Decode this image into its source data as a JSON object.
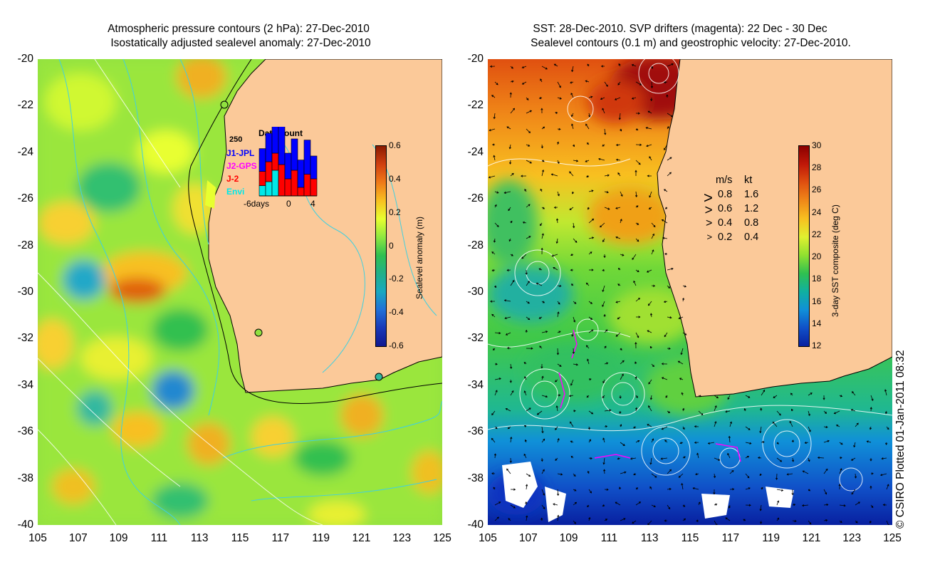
{
  "left_panel": {
    "title_line1": "Atmospheric pressure contours (2 hPa): 27-Dec-2010",
    "title_line2": "Isostatically adjusted sealevel anomaly: 27-Dec-2010",
    "y_ticks": [
      "-20",
      "-22",
      "-24",
      "-26",
      "-28",
      "-30",
      "-32",
      "-34",
      "-36",
      "-38",
      "-40"
    ],
    "x_ticks": [
      "105",
      "107",
      "109",
      "111",
      "113",
      "115",
      "117",
      "119",
      "121",
      "123",
      "125"
    ],
    "colorbar": {
      "label": "Sealevel anomaly (m)",
      "ticks": [
        "0.6",
        "0.4",
        "0.2",
        "0",
        "-0.2",
        "-0.4",
        "-0.6"
      ],
      "colors": [
        "#8b1a00",
        "#d04010",
        "#f07a18",
        "#f8c020",
        "#e8ff30",
        "#90e840",
        "#30c050",
        "#20b088",
        "#18a8c0",
        "#2070d8",
        "#1838b8",
        "#101890"
      ]
    },
    "histogram": {
      "title": "Data count",
      "max_label": "250",
      "x_labels": [
        "-6days",
        "0",
        "4"
      ],
      "legend": [
        {
          "label": "J1-JPL",
          "color": "#0000ff"
        },
        {
          "label": "J2-GPS",
          "color": "#ff00ff"
        },
        {
          "label": "J-2",
          "color": "#ff0000"
        },
        {
          "label": "Envi",
          "color": "#00e8e8"
        }
      ],
      "bars": [
        {
          "j2": 0.25,
          "envi": 0.18,
          "j1": 0.4
        },
        {
          "j2": 0.35,
          "envi": 0.25,
          "j1": 0.5
        },
        {
          "j2": 0.3,
          "envi": 0.45,
          "j1": 0.8
        },
        {
          "j2": 0.55,
          "envi": 0.0,
          "j1": 0.68
        },
        {
          "j2": 0.3,
          "envi": 0.0,
          "j1": 0.45
        },
        {
          "j2": 0.45,
          "envi": 0.0,
          "j1": 0.55
        },
        {
          "j2": 0.15,
          "envi": 0.0,
          "j1": 0.48
        },
        {
          "j2": 0.38,
          "envi": 0.0,
          "j1": 0.6
        },
        {
          "j2": 0.3,
          "envi": 0.0,
          "j1": 0.4
        }
      ]
    }
  },
  "right_panel": {
    "title_line1": "SST: 28-Dec-2010. SVP drifters (magenta): 22 Dec - 30 Dec",
    "title_line2": "Sealevel contours (0.1 m) and geostrophic velocity: 27-Dec-2010.",
    "y_ticks": [
      "-20",
      "-22",
      "-24",
      "-26",
      "-28",
      "-30",
      "-32",
      "-34",
      "-36",
      "-38",
      "-40"
    ],
    "x_ticks": [
      "105",
      "107",
      "109",
      "111",
      "113",
      "115",
      "117",
      "119",
      "121",
      "123",
      "125"
    ],
    "colorbar": {
      "label": "3-day SST composite (deg C)",
      "ticks": [
        "30",
        "28",
        "26",
        "24",
        "22",
        "20",
        "18",
        "16",
        "14",
        "12"
      ],
      "colors": [
        "#8b0000",
        "#c01808",
        "#e05010",
        "#f08818",
        "#f8c020",
        "#e0f030",
        "#90e030",
        "#30c050",
        "#10b0a0",
        "#1090d8",
        "#1050c8",
        "#0820a0"
      ]
    },
    "velocity_legend": {
      "header_ms": "m/s",
      "header_kt": "kt",
      "rows": [
        {
          "ms": "0.8",
          "kt": "1.6"
        },
        {
          "ms": "0.6",
          "kt": "1.2"
        },
        {
          "ms": "0.4",
          "kt": "0.8"
        },
        {
          "ms": "0.2",
          "kt": "0.4"
        }
      ]
    }
  },
  "credit": "© CSIRO Plotted 01-Jan-2011 08:32",
  "colors": {
    "land": "#fbc999",
    "coast_line": "#000000",
    "contour_cyan": "#40d0e0",
    "contour_white": "#ffffff",
    "drifter": "#ff00ff"
  }
}
